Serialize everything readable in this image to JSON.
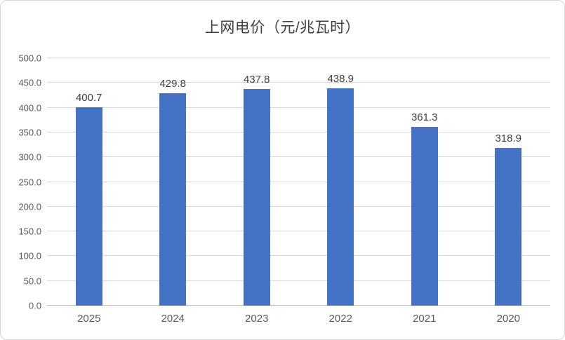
{
  "chart": {
    "title": "上网电价（元/兆瓦时）"
  },
  "chart_data": {
    "type": "bar",
    "title": "上网电价（元/兆瓦时）",
    "categories": [
      "2025",
      "2024",
      "2023",
      "2022",
      "2021",
      "2020"
    ],
    "values": [
      400.7,
      429.8,
      437.8,
      438.9,
      361.3,
      318.9
    ],
    "xlabel": "",
    "ylabel": "",
    "ylim": [
      0,
      500
    ],
    "ytick_step": 50,
    "ytick_decimals": 1,
    "value_decimals": 1,
    "grid": true,
    "legend_position": "none",
    "bar_color": "#4472C4",
    "title_color": "#404040",
    "data_label_color": "#404040",
    "axis_text_color": "#595959",
    "gridline_color": "#D9D9D9",
    "axis_line_color": "#BFBFBF",
    "background_color": "#FFFFFF"
  }
}
